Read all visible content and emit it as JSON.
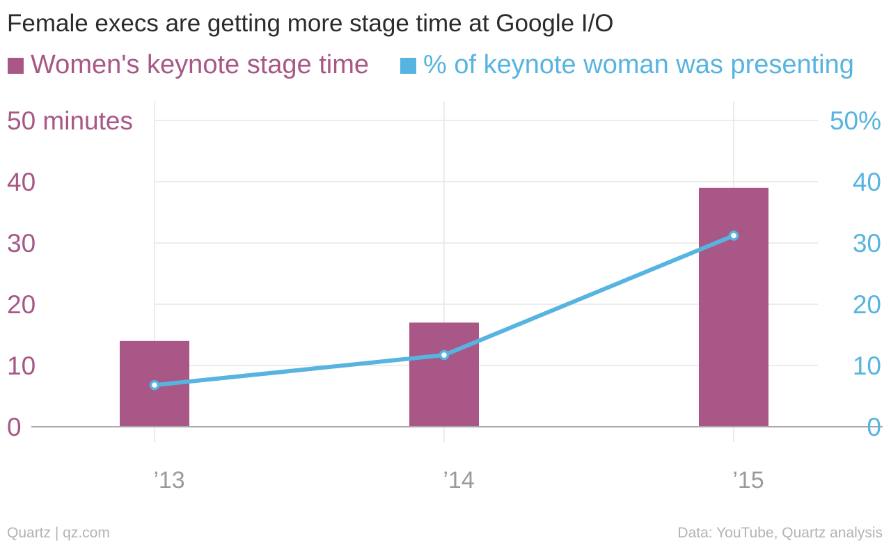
{
  "title": "Female execs are getting more stage time at Google I/O",
  "colors": {
    "bar": "#a85786",
    "line": "#57b4e0",
    "grid": "#e6e6e6",
    "baseline": "#a8a8a8",
    "x_tick": "#9a9a9a",
    "footer": "#b3b3b3",
    "title": "#2b2b2b"
  },
  "legend": [
    {
      "label": "Women's keynote stage time",
      "color": "#a85786"
    },
    {
      "label": "% of keynote woman was presenting",
      "color": "#57b4e0"
    }
  ],
  "footer": {
    "source_left": "Quartz | qz.com",
    "source_right": "Data: YouTube, Quartz analysis"
  },
  "chart_data": {
    "type": "bar",
    "title": "Female execs are getting more stage time at Google I/O",
    "categories": [
      "’13",
      "’14",
      "’15"
    ],
    "series": [
      {
        "name": "Women's keynote stage time",
        "type": "bar",
        "axis": "left",
        "values": [
          14,
          17,
          39
        ]
      },
      {
        "name": "% of keynote woman was presenting",
        "type": "line",
        "axis": "right",
        "values": [
          6.8,
          11.7,
          31.2
        ]
      }
    ],
    "y_left": {
      "range": [
        0,
        50
      ],
      "ticks": [
        0,
        10,
        20,
        30,
        40,
        50
      ],
      "tick_labels": [
        "0",
        "10",
        "20",
        "30",
        "40",
        "50 minutes"
      ]
    },
    "y_right": {
      "range": [
        0,
        50
      ],
      "ticks": [
        0,
        10,
        20,
        30,
        40,
        50
      ],
      "tick_labels": [
        "0",
        "10",
        "20",
        "30",
        "40",
        "50%"
      ]
    },
    "grid": true,
    "legend_position": "top-left"
  }
}
